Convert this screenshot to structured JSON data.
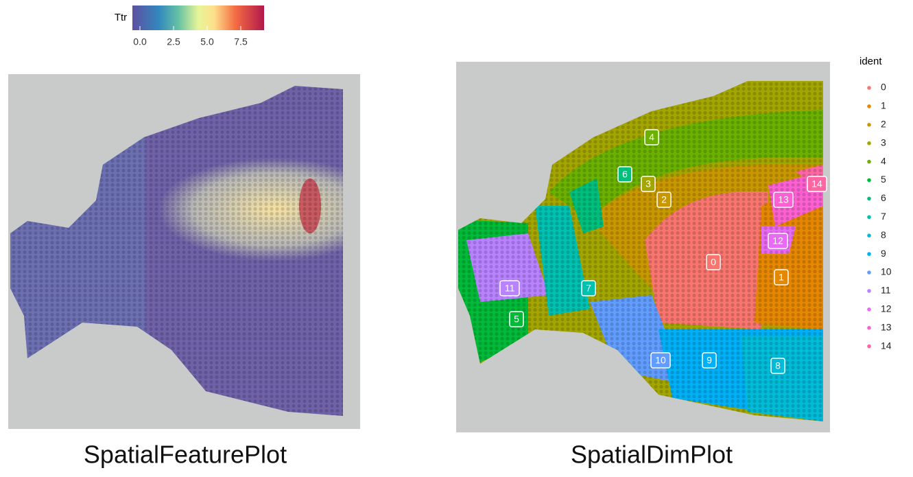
{
  "colorbar": {
    "title": "Ttr",
    "ticks": [
      {
        "value": 0,
        "label": "0.0"
      },
      {
        "value": 2.5,
        "label": "2.5"
      },
      {
        "value": 5,
        "label": "5.0"
      },
      {
        "value": 7.5,
        "label": "7.5"
      }
    ]
  },
  "left_caption": "SpatialFeaturePlot",
  "right_caption": "SpatialDimPlot",
  "legend": {
    "title": "ident",
    "items": [
      {
        "label": "0",
        "color": "#F8766D"
      },
      {
        "label": "1",
        "color": "#E58700"
      },
      {
        "label": "2",
        "color": "#C99800"
      },
      {
        "label": "3",
        "color": "#A3A500"
      },
      {
        "label": "4",
        "color": "#6BB100"
      },
      {
        "label": "5",
        "color": "#00BA38"
      },
      {
        "label": "6",
        "color": "#00BF7D"
      },
      {
        "label": "7",
        "color": "#00C0AF"
      },
      {
        "label": "8",
        "color": "#00BCD8"
      },
      {
        "label": "9",
        "color": "#00B0F6"
      },
      {
        "label": "10",
        "color": "#619CFF"
      },
      {
        "label": "11",
        "color": "#B983FF"
      },
      {
        "label": "12",
        "color": "#E76BF3"
      },
      {
        "label": "13",
        "color": "#FD61D1"
      },
      {
        "label": "14",
        "color": "#FF67A4"
      }
    ]
  },
  "map_labels": [
    "4",
    "6",
    "3",
    "2",
    "14",
    "13",
    "12",
    "0",
    "1",
    "11",
    "7",
    "5",
    "10",
    "9",
    "8"
  ]
}
